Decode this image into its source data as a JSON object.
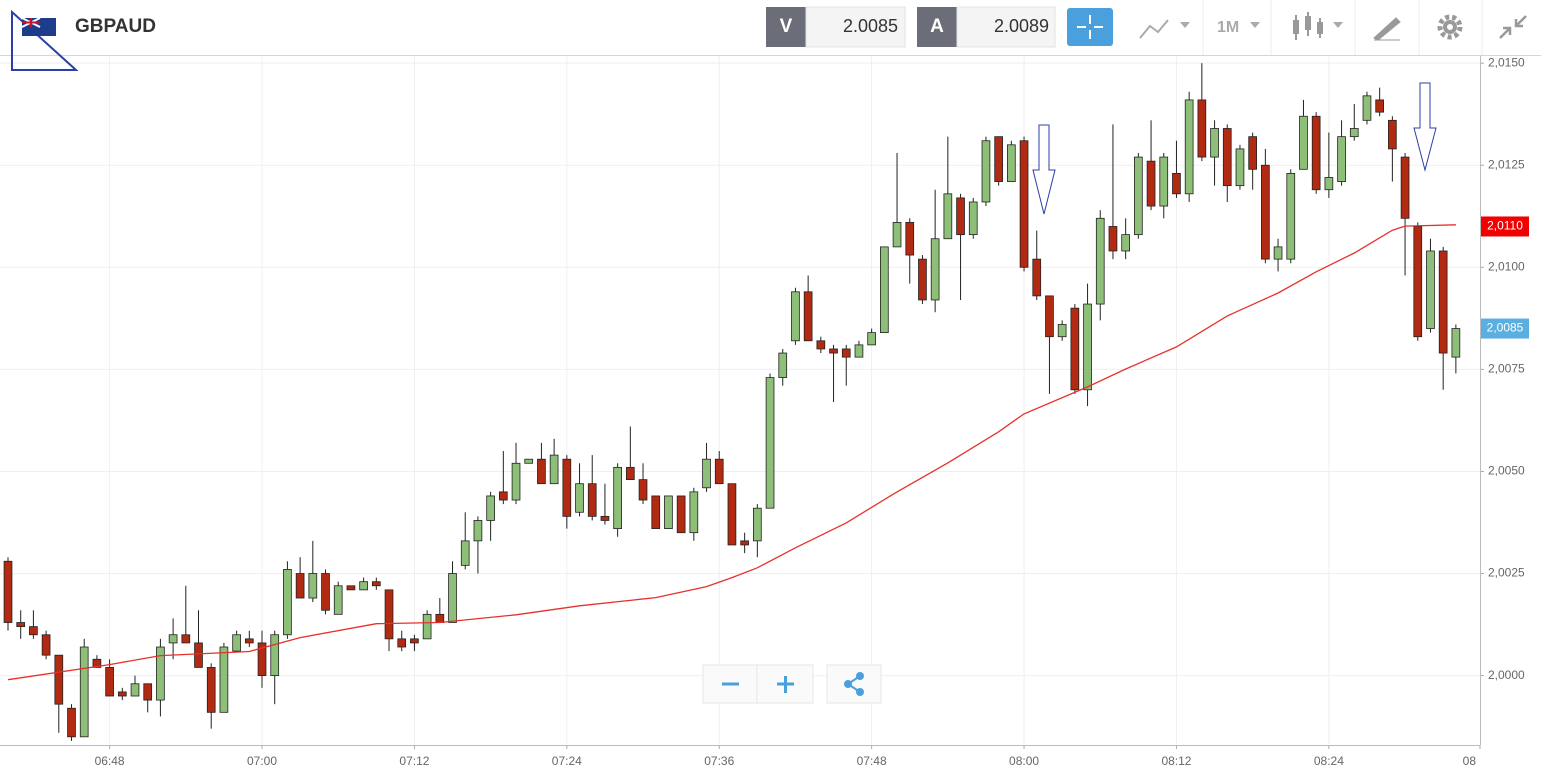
{
  "header": {
    "symbol": "GBPAUD",
    "bid_label": "V",
    "bid": 2.0085,
    "ask_label": "A",
    "ask": 2.0089,
    "timeframe": "1M"
  },
  "chart_data": {
    "type": "candlestick",
    "x": [
      0,
      1,
      2,
      3,
      4,
      5,
      6,
      7,
      8,
      9,
      10,
      11,
      12,
      13,
      14,
      15,
      16,
      17,
      18,
      19,
      20,
      21,
      22,
      23,
      24,
      25,
      26,
      27,
      28,
      29,
      30,
      31,
      32,
      33,
      34,
      35,
      36,
      37,
      38,
      39,
      40,
      41,
      42,
      43,
      44,
      45,
      46,
      47,
      48,
      49,
      50,
      51,
      52,
      53,
      54,
      55,
      56,
      57,
      58,
      59,
      60,
      61,
      62,
      63,
      64,
      65,
      66,
      67,
      68,
      69,
      70,
      71,
      72,
      73,
      74,
      75,
      76,
      77,
      78,
      79,
      80,
      81,
      82,
      83,
      84,
      85,
      86,
      87,
      88,
      89,
      90,
      91,
      92,
      93,
      94,
      95,
      96,
      97,
      98,
      99,
      100,
      101,
      102,
      103,
      104,
      105,
      106,
      107,
      108,
      109,
      110,
      111,
      112,
      113,
      114
    ],
    "open": [
      2.0028,
      2.0013,
      2.0012,
      2.001,
      2.0005,
      1.9992,
      1.9985,
      2.0004,
      2.0002,
      1.9996,
      1.9995,
      1.9998,
      1.9994,
      2.0008,
      2.001,
      2.0008,
      2.0002,
      1.9991,
      2.0006,
      2.0009,
      2.0008,
      2.0,
      2.001,
      2.0025,
      2.0019,
      2.0025,
      2.0015,
      2.0022,
      2.0021,
      2.0023,
      2.0021,
      2.0009,
      2.0009,
      2.0009,
      2.0015,
      2.0013,
      2.0027,
      2.0033,
      2.0038,
      2.0045,
      2.0043,
      2.0052,
      2.0053,
      2.0047,
      2.0053,
      2.004,
      2.0047,
      2.0039,
      2.0036,
      2.0051,
      2.0048,
      2.0044,
      2.0036,
      2.0044,
      2.0035,
      2.0046,
      2.0053,
      2.0047,
      2.0033,
      2.0033,
      2.0041,
      2.0073,
      2.0082,
      2.0094,
      2.0082,
      2.008,
      2.008,
      2.0078,
      2.0081,
      2.0084,
      2.0105,
      2.0111,
      2.0102,
      2.0092,
      2.0107,
      2.0117,
      2.0108,
      2.0116,
      2.0132,
      2.0121,
      2.0131,
      2.0102,
      2.0093,
      2.0083,
      2.009,
      2.007,
      2.0091,
      2.011,
      2.0104,
      2.0108,
      2.0126,
      2.0115,
      2.0123,
      2.0118,
      2.0141,
      2.0127,
      2.0134,
      2.012,
      2.0132,
      2.0125,
      2.0102,
      2.0102,
      2.0124,
      2.0137,
      2.0119,
      2.0121,
      2.0132,
      2.0136,
      2.0141,
      2.0136,
      2.0127,
      2.011,
      2.0085,
      2.0104,
      2.0078
    ],
    "high": [
      2.0029,
      2.0016,
      2.0016,
      2.0011,
      2.0005,
      1.9993,
      2.0009,
      2.0005,
      2.0004,
      1.9997,
      2.0,
      1.9998,
      2.0009,
      2.0014,
      2.0022,
      2.0016,
      2.0003,
      2.0008,
      2.0011,
      2.0011,
      2.0011,
      2.0011,
      2.0028,
      2.0029,
      2.0033,
      2.0026,
      2.0023,
      2.0022,
      2.0024,
      2.0024,
      2.0021,
      2.0011,
      2.001,
      2.0016,
      2.0019,
      2.0028,
      2.004,
      2.0039,
      2.0045,
      2.0055,
      2.0057,
      2.0053,
      2.0057,
      2.0058,
      2.0054,
      2.0052,
      2.0054,
      2.0047,
      2.0052,
      2.0061,
      2.0052,
      2.0044,
      2.0044,
      2.0044,
      2.0046,
      2.0057,
      2.0055,
      2.0047,
      2.0035,
      2.0042,
      2.0074,
      2.008,
      2.0095,
      2.0098,
      2.0083,
      2.0081,
      2.0081,
      2.0082,
      2.0085,
      2.0105,
      2.0128,
      2.0112,
      2.0103,
      2.0119,
      2.0132,
      2.0118,
      2.0117,
      2.0132,
      2.0132,
      2.0131,
      2.0132,
      2.0109,
      2.0093,
      2.0087,
      2.0091,
      2.0096,
      2.0114,
      2.0135,
      2.0112,
      2.0128,
      2.0136,
      2.0128,
      2.0131,
      2.0143,
      2.015,
      2.0136,
      2.0135,
      2.013,
      2.0133,
      2.0129,
      2.0107,
      2.0124,
      2.0141,
      2.0138,
      2.0133,
      2.0136,
      2.014,
      2.0143,
      2.0144,
      2.0137,
      2.0128,
      2.0111,
      2.0107,
      2.0105,
      2.0086
    ],
    "low": [
      2.0011,
      2.0009,
      2.0009,
      2.0004,
      1.9986,
      1.9984,
      1.9985,
      2.0002,
      1.9995,
      1.9994,
      1.9995,
      1.9991,
      1.999,
      2.0004,
      2.0008,
      2.0002,
      1.9987,
      1.9991,
      2.0006,
      2.0007,
      1.9997,
      1.9993,
      2.0009,
      2.0019,
      2.0018,
      2.0015,
      2.0015,
      2.0021,
      2.0021,
      2.0021,
      2.0006,
      2.0006,
      2.0006,
      2.0009,
      2.0013,
      2.0013,
      2.0026,
      2.0025,
      2.0033,
      2.0042,
      2.0042,
      2.0052,
      2.0047,
      2.0047,
      2.0036,
      2.0039,
      2.0038,
      2.0037,
      2.0034,
      2.0048,
      2.0042,
      2.0036,
      2.0036,
      2.0035,
      2.0033,
      2.0045,
      2.0047,
      2.0032,
      2.003,
      2.0029,
      2.0041,
      2.0071,
      2.0081,
      2.0082,
      2.0079,
      2.0067,
      2.0071,
      2.0078,
      2.0081,
      2.0084,
      2.0105,
      2.0096,
      2.0091,
      2.0089,
      2.0107,
      2.0092,
      2.0107,
      2.0115,
      2.012,
      2.0121,
      2.0099,
      2.0092,
      2.0069,
      2.0082,
      2.0069,
      2.0066,
      2.0087,
      2.0102,
      2.0102,
      2.0107,
      2.0114,
      2.0112,
      2.0117,
      2.0116,
      2.0126,
      2.012,
      2.0116,
      2.0119,
      2.0119,
      2.0101,
      2.0099,
      2.0101,
      2.0124,
      2.0118,
      2.0117,
      2.012,
      2.0131,
      2.0135,
      2.0137,
      2.0121,
      2.0098,
      2.0082,
      2.0084,
      2.007,
      2.0074
    ],
    "close": [
      2.0013,
      2.0012,
      2.001,
      2.0005,
      1.9993,
      1.9985,
      2.0007,
      2.0002,
      1.9995,
      1.9995,
      1.9998,
      1.9994,
      2.0007,
      2.001,
      2.0008,
      2.0002,
      1.9991,
      2.0007,
      2.001,
      2.0008,
      2.0,
      2.001,
      2.0026,
      2.0019,
      2.0025,
      2.0016,
      2.0022,
      2.0021,
      2.0023,
      2.0022,
      2.0009,
      2.0007,
      2.0008,
      2.0015,
      2.0013,
      2.0025,
      2.0033,
      2.0038,
      2.0044,
      2.0043,
      2.0052,
      2.0053,
      2.0047,
      2.0054,
      2.0039,
      2.0047,
      2.0039,
      2.0038,
      2.0051,
      2.0048,
      2.0043,
      2.0036,
      2.0044,
      2.0035,
      2.0045,
      2.0053,
      2.0047,
      2.0032,
      2.0032,
      2.0041,
      2.0073,
      2.0079,
      2.0094,
      2.0082,
      2.008,
      2.0079,
      2.0078,
      2.0081,
      2.0084,
      2.0105,
      2.0111,
      2.0103,
      2.0092,
      2.0107,
      2.0118,
      2.0108,
      2.0116,
      2.0131,
      2.0121,
      2.013,
      2.01,
      2.0093,
      2.0083,
      2.0086,
      2.007,
      2.0091,
      2.0112,
      2.0104,
      2.0108,
      2.0127,
      2.0115,
      2.0127,
      2.0118,
      2.0141,
      2.0127,
      2.0134,
      2.012,
      2.0129,
      2.0124,
      2.0102,
      2.0105,
      2.0123,
      2.0137,
      2.0119,
      2.0122,
      2.0132,
      2.0134,
      2.0142,
      2.0138,
      2.0129,
      2.0112,
      2.0083,
      2.0104,
      2.0079,
      2.0085
    ],
    "up_color": "#8dbf78",
    "down_color": "#b22a12",
    "moving_average": {
      "color": "#e8302a",
      "x": [
        0,
        8,
        12,
        19,
        23,
        29,
        34,
        40,
        45,
        51,
        55,
        57,
        59,
        62,
        66,
        70,
        74,
        78,
        80,
        85,
        88,
        92,
        96,
        100,
        103,
        106,
        109,
        110,
        114
      ],
      "values": [
        1.9999,
        2.00027,
        2.00049,
        2.00059,
        2.00093,
        2.00127,
        2.0013,
        2.00149,
        2.00171,
        2.00191,
        2.00218,
        2.0024,
        2.00264,
        2.00313,
        2.00374,
        2.0045,
        2.00521,
        2.00597,
        2.00641,
        2.00707,
        2.00751,
        2.00805,
        2.00881,
        2.00937,
        2.00989,
        2.01035,
        2.01091,
        2.01101,
        2.01104
      ]
    },
    "ma_last": {
      "value": 2.011,
      "label": "2,0110"
    },
    "last_price": {
      "value": 2.0085,
      "label": "2,0085"
    },
    "xlim": [
      -0.63,
      115.9
    ],
    "xticks": [
      {
        "value": 8,
        "label": "06:48"
      },
      {
        "value": 20,
        "label": "07:00"
      },
      {
        "value": 32,
        "label": "07:12"
      },
      {
        "value": 44,
        "label": "07:24"
      },
      {
        "value": 56,
        "label": "07:36"
      },
      {
        "value": 68,
        "label": "07:48"
      },
      {
        "value": 80,
        "label": "08:00"
      },
      {
        "value": 92,
        "label": "08:12"
      },
      {
        "value": 104,
        "label": "08:24"
      },
      {
        "value": 116,
        "label": "08"
      }
    ],
    "ylim": [
      1.9983,
      2.0152
    ],
    "yticks": [
      {
        "value": 2.0,
        "label": "2,0000"
      },
      {
        "value": 2.0025,
        "label": "2,0025"
      },
      {
        "value": 2.005,
        "label": "2,0050"
      },
      {
        "value": 2.0075,
        "label": "2,0075"
      },
      {
        "value": 2.01,
        "label": "2,0100"
      },
      {
        "value": 2.0125,
        "label": "2,0125"
      },
      {
        "value": 2.015,
        "label": "2,0150"
      }
    ],
    "grid": true
  }
}
